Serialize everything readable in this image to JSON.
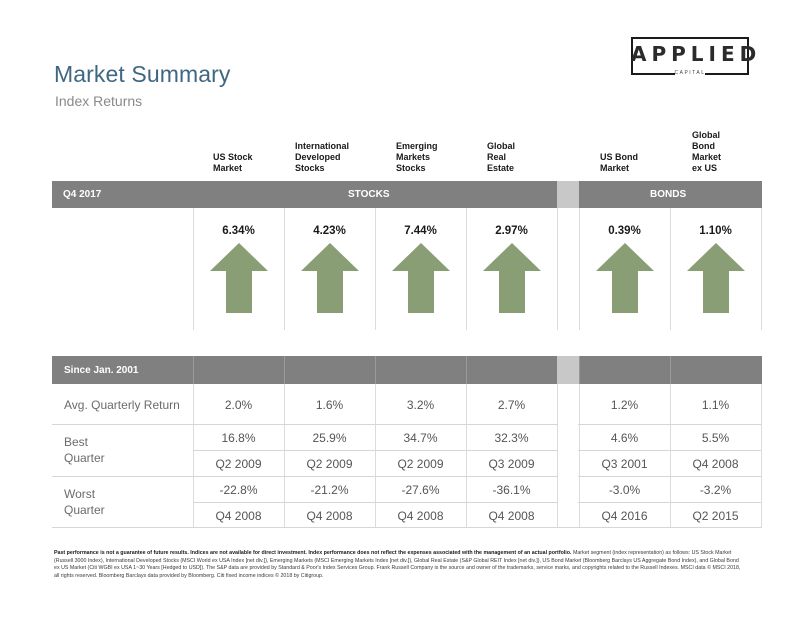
{
  "header": {
    "title": "Market Summary",
    "subtitle": "Index Returns"
  },
  "logo": {
    "word": "APPLIED",
    "sub": "CAPITAL"
  },
  "columns": [
    {
      "label_lines": [
        "US Stock",
        "Market"
      ]
    },
    {
      "label_lines": [
        "International",
        "Developed",
        "Stocks"
      ]
    },
    {
      "label_lines": [
        "Emerging",
        "Markets",
        "Stocks"
      ]
    },
    {
      "label_lines": [
        "Global",
        "Real",
        "Estate"
      ]
    },
    {
      "label_lines": [
        "US Bond",
        "Market"
      ]
    },
    {
      "label_lines": [
        "Global",
        "Bond",
        "Market",
        "ex US"
      ]
    }
  ],
  "q4": {
    "period_label": "Q4 2017",
    "stocks_label": "STOCKS",
    "bonds_label": "BONDS",
    "returns": [
      "6.34%",
      "4.23%",
      "7.44%",
      "2.97%",
      "0.39%",
      "1.10%"
    ],
    "direction": [
      "up",
      "up",
      "up",
      "up",
      "up",
      "up"
    ],
    "arrow_color": "#8a9e75"
  },
  "since": {
    "period_label": "Since Jan. 2001",
    "avg_label": "Avg. Quarterly Return",
    "avg": [
      "2.0%",
      "1.6%",
      "3.2%",
      "2.7%",
      "1.2%",
      "1.1%"
    ],
    "best_label_lines": [
      "Best",
      "Quarter"
    ],
    "best_values": [
      "16.8%",
      "25.9%",
      "34.7%",
      "32.3%",
      "4.6%",
      "5.5%"
    ],
    "best_quarters": [
      "Q2 2009",
      "Q2 2009",
      "Q2 2009",
      "Q3 2009",
      "Q3 2001",
      "Q4 2008"
    ],
    "worst_label_lines": [
      "Worst",
      "Quarter"
    ],
    "worst_values": [
      "-22.8%",
      "-21.2%",
      "-27.6%",
      "-36.1%",
      "-3.0%",
      "-3.2%"
    ],
    "worst_quarters": [
      "Q4 2008",
      "Q4 2008",
      "Q4 2008",
      "Q4 2008",
      "Q4 2016",
      "Q2 2015"
    ]
  },
  "footer": {
    "bold": "Past performance is not a guarantee of future results. Indices are not available for direct investment. Index performance does not reflect the expenses associated with the management of an actual portfolio.",
    "text": "Market segment (index representation) as follows: US Stock Market (Russell 3000 Index), International Developed Stocks (MSCI World ex USA Index [net div.]), Emerging Markets (MSCI Emerging Markets Index [net div.]), Global Real Estate (S&P Global REIT Index [net div.]), US Bond Market (Bloomberg Barclays US Aggregate Bond Index), and Global Bond ex US Market (Citi WGBI ex USA 1~30 Years [Hedged to USD]). The S&P data are provided by Standard & Poor's Index Services Group. Frank Russell Company is the source and owner of the trademarks, service marks, and copyrights related to the Russell Indexes. MSCI data © MSCI 2018, all rights reserved. Bloomberg Barclays data provided by Bloomberg. Citi fixed income indices © 2018 by Citigroup."
  },
  "colors": {
    "title": "#3f6782",
    "band": "#808080",
    "gap": "#c8c8c8",
    "arrow": "#8a9e75"
  }
}
